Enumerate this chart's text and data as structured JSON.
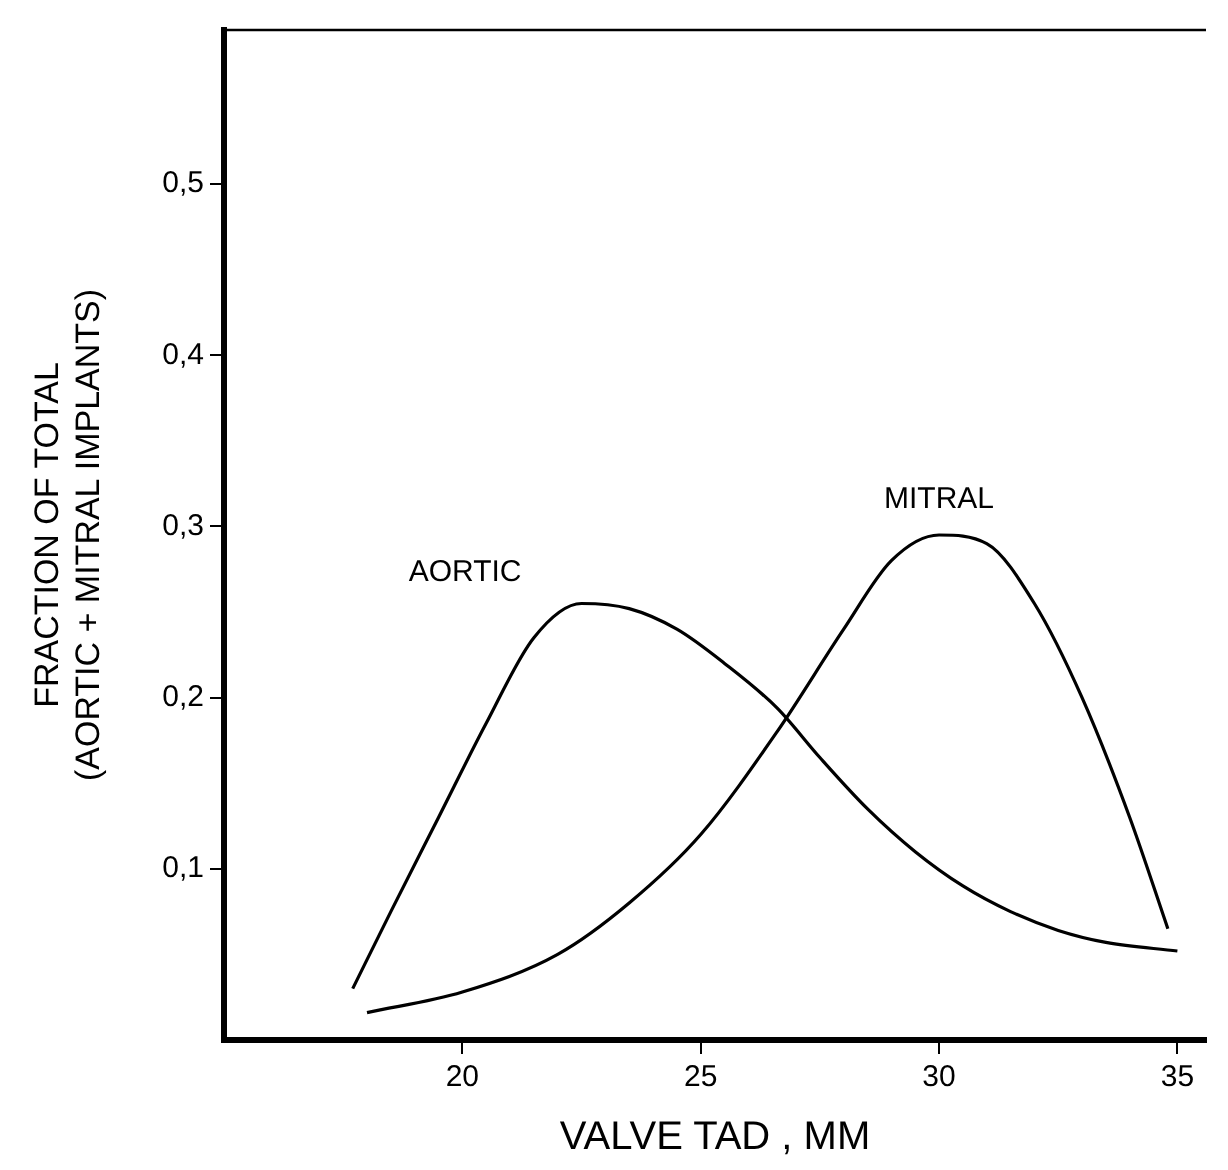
{
  "chart_data": {
    "type": "line",
    "xlabel": "VALVE TAD , MM",
    "ylabel": "FRACTION OF TOTAL\n(AORTIC + MITRAL IMPLANTS)",
    "xlim": [
      15,
      35.6
    ],
    "xticks": [
      20,
      25,
      30,
      35
    ],
    "ylim": [
      0,
      0.59
    ],
    "yticks": [
      {
        "value": 0.1,
        "label": "0,1"
      },
      {
        "value": 0.2,
        "label": "0,2"
      },
      {
        "value": 0.3,
        "label": "0,3"
      },
      {
        "value": 0.4,
        "label": "0,4"
      },
      {
        "value": 0.5,
        "label": "0,5"
      }
    ],
    "grid": false,
    "legend": false,
    "marker": "none",
    "line_style": "solid",
    "series": [
      {
        "name": "AORTIC",
        "color": "#000000",
        "x": [
          17.7,
          18.5,
          19.5,
          20.5,
          21.5,
          22.5,
          23.5,
          24.5,
          25.5,
          26.6,
          27.5,
          28.5,
          29.5,
          30.5,
          31.5,
          32.5,
          33.5,
          35
        ],
        "values": [
          0.03,
          0.075,
          0.13,
          0.185,
          0.235,
          0.255,
          0.252,
          0.24,
          0.22,
          0.194,
          0.165,
          0.135,
          0.11,
          0.09,
          0.075,
          0.064,
          0.057,
          0.052
        ]
      },
      {
        "name": "MITRAL",
        "color": "#000000",
        "x": [
          18,
          20,
          22,
          23.5,
          25,
          26.6,
          28,
          29,
          30,
          31,
          32,
          33,
          34,
          34.8
        ],
        "values": [
          0.016,
          0.028,
          0.05,
          0.08,
          0.12,
          0.18,
          0.24,
          0.28,
          0.295,
          0.29,
          0.255,
          0.2,
          0.13,
          0.065
        ]
      }
    ]
  }
}
